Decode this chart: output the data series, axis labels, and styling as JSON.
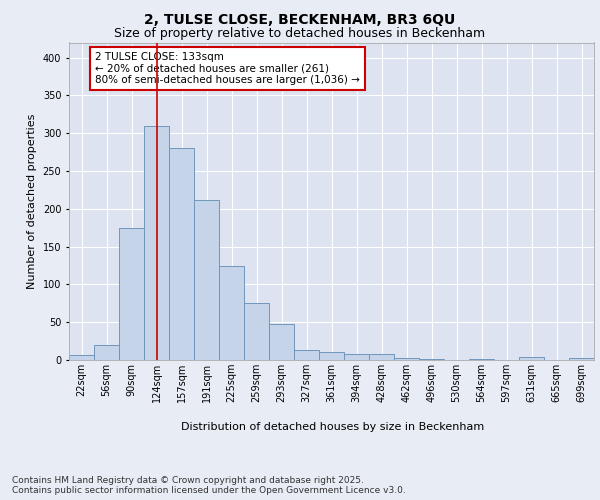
{
  "title": "2, TULSE CLOSE, BECKENHAM, BR3 6QU",
  "subtitle": "Size of property relative to detached houses in Beckenham",
  "xlabel": "Distribution of detached houses by size in Beckenham",
  "ylabel": "Number of detached properties",
  "background_color": "#dde3f0",
  "bar_color": "#c5d4e8",
  "bar_edge_color": "#7096bc",
  "grid_color": "#ffffff",
  "fig_background": "#e8ecf5",
  "categories": [
    "22sqm",
    "56sqm",
    "90sqm",
    "124sqm",
    "157sqm",
    "191sqm",
    "225sqm",
    "259sqm",
    "293sqm",
    "327sqm",
    "361sqm",
    "394sqm",
    "428sqm",
    "462sqm",
    "496sqm",
    "530sqm",
    "564sqm",
    "597sqm",
    "631sqm",
    "665sqm",
    "699sqm"
  ],
  "values": [
    6,
    20,
    175,
    310,
    280,
    212,
    125,
    75,
    48,
    13,
    11,
    8,
    8,
    2,
    1,
    0,
    1,
    0,
    4,
    0,
    3
  ],
  "ylim": [
    0,
    420
  ],
  "yticks": [
    0,
    50,
    100,
    150,
    200,
    250,
    300,
    350,
    400
  ],
  "vline_x": 3,
  "vline_color": "#cc0000",
  "annotation_text": "2 TULSE CLOSE: 133sqm\n← 20% of detached houses are smaller (261)\n80% of semi-detached houses are larger (1,036) →",
  "annotation_box_color": "#ffffff",
  "annotation_box_edge": "#cc0000",
  "footer_text": "Contains HM Land Registry data © Crown copyright and database right 2025.\nContains public sector information licensed under the Open Government Licence v3.0.",
  "title_fontsize": 10,
  "subtitle_fontsize": 9,
  "axis_label_fontsize": 8,
  "tick_fontsize": 7,
  "annotation_fontsize": 7.5,
  "footer_fontsize": 6.5
}
